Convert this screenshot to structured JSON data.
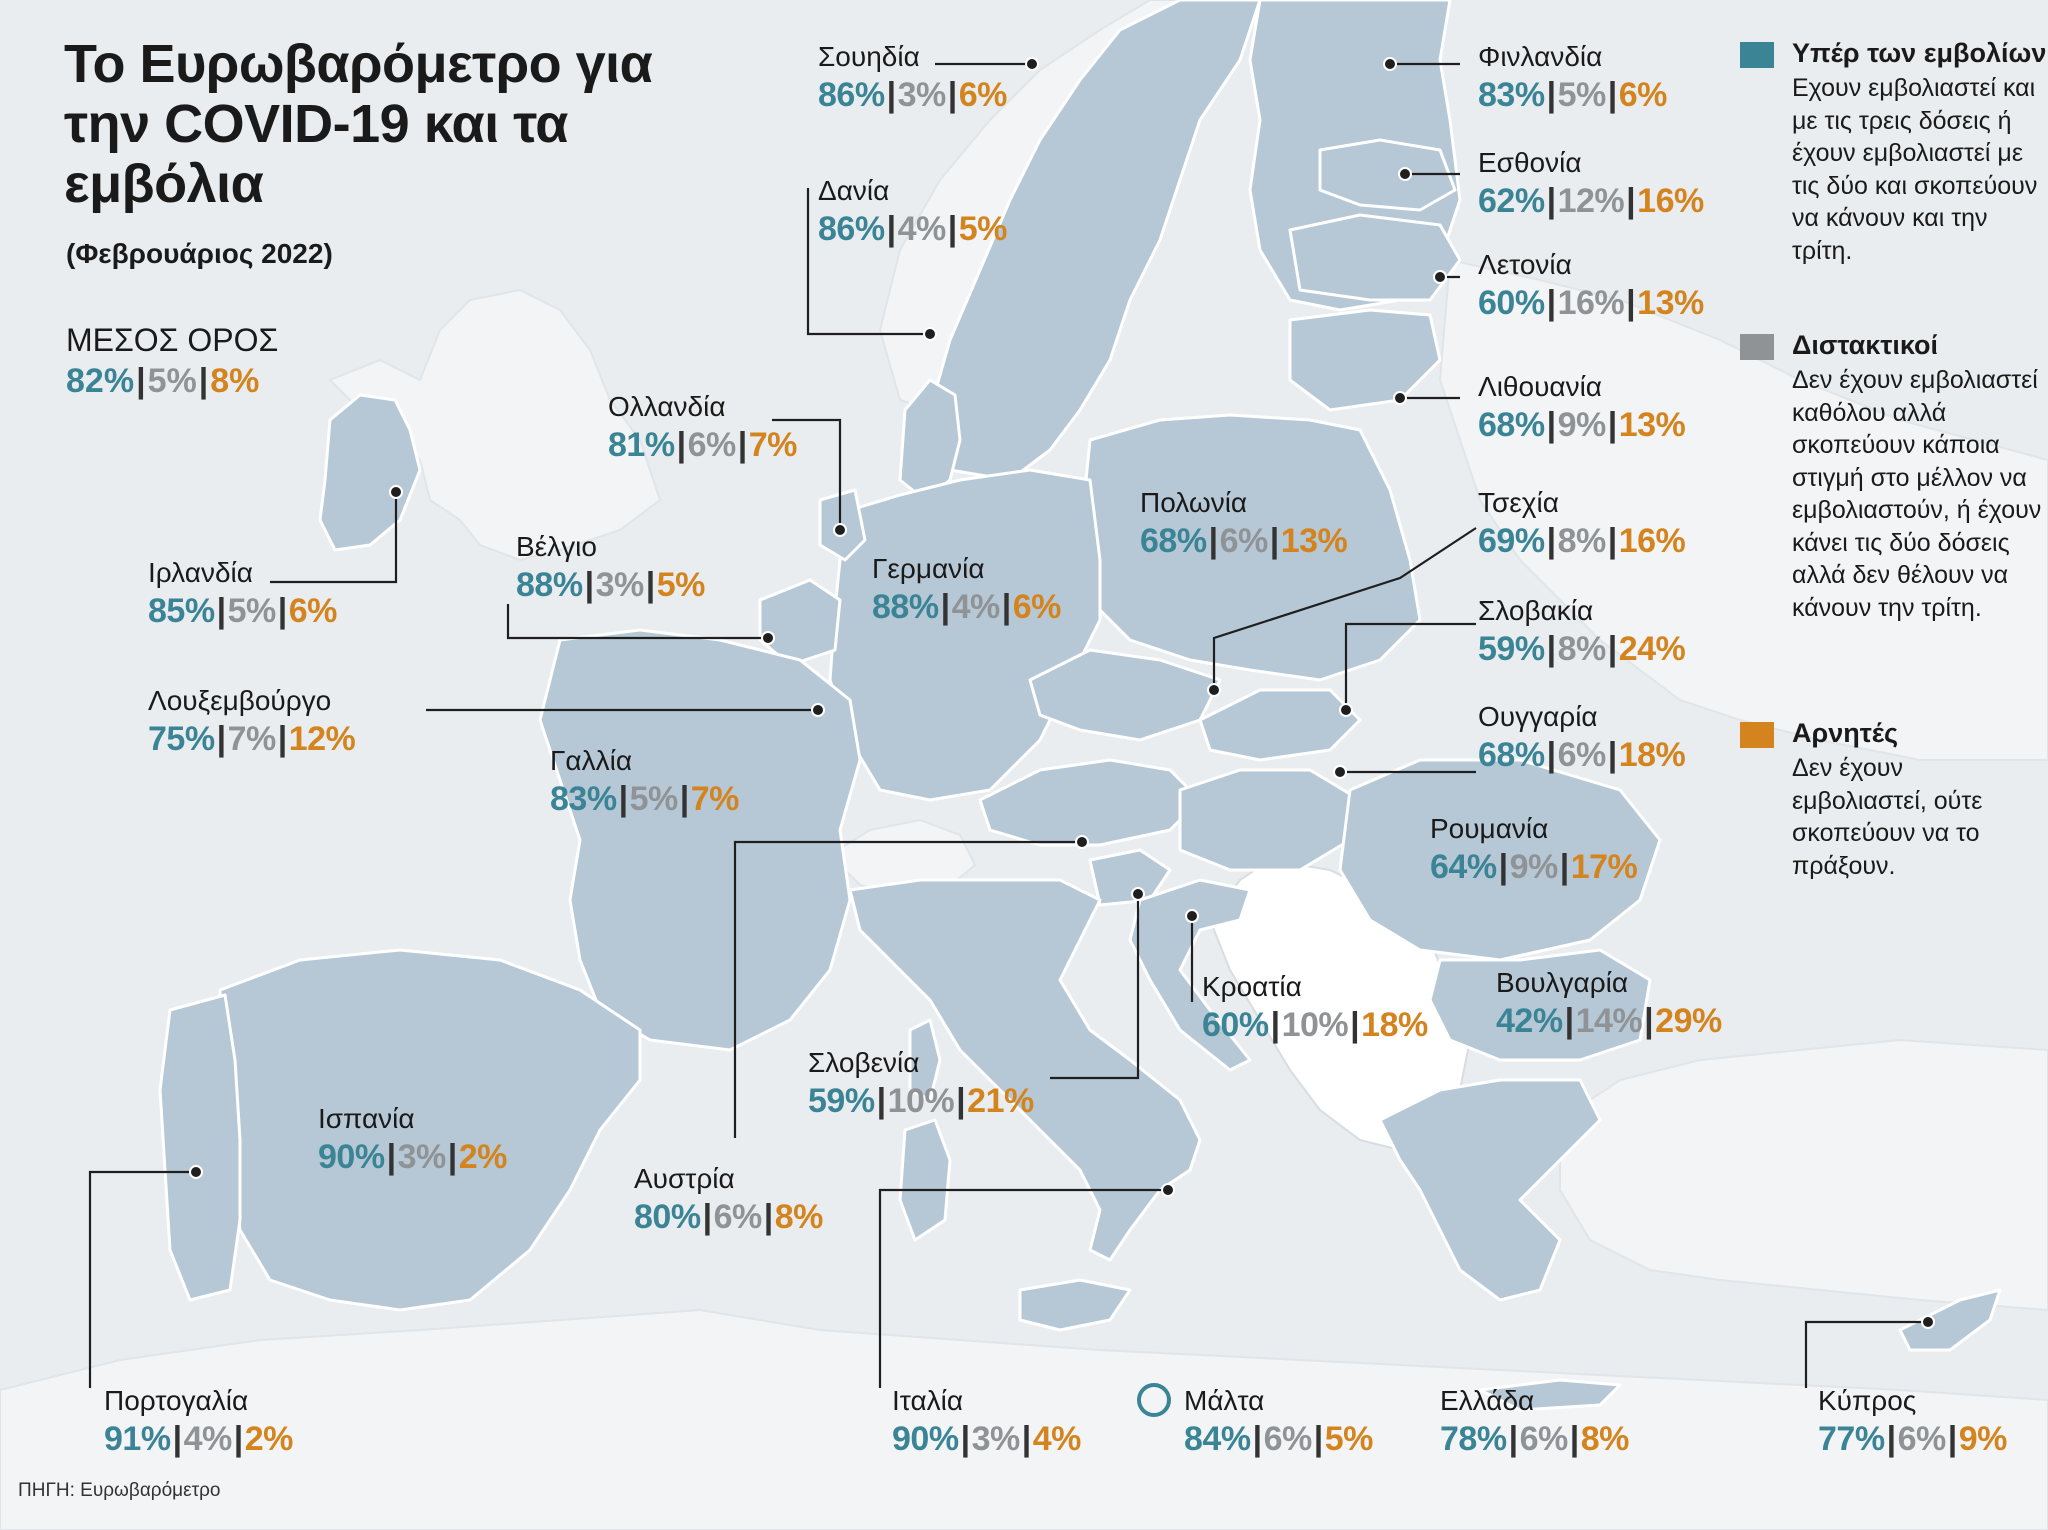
{
  "title": "Το Ευρωβαρόμετρο για την COVID-19 και τα εμβόλια",
  "subtitle": "(Φεβρουάριος 2022)",
  "source": "ΠΗΓΗ: Ευρωβαρόμετρο",
  "colors": {
    "pro": "#3b8496",
    "hesitant": "#8f9396",
    "against": "#d4841f",
    "land": "#b6c8d5"
  },
  "average": {
    "label": "ΜΕΣΟΣ ΟΡΟΣ",
    "pro": "82%",
    "hesitant": "5%",
    "against": "8%"
  },
  "legend": [
    {
      "title": "Υπέρ των εμβολίων",
      "description": "Εχουν εμβολιαστεί και με τις τρεις δόσεις ή έχουν εμβολιαστεί με τις δύο και σκοπεύουν να κάνουν και την τρίτη.",
      "color": "#3b8496"
    },
    {
      "title": "Διστακτικοί",
      "description": "Δεν έχουν εμβολιαστεί καθόλου αλλά σκοπεύουν κάποια στιγμή στο μέλλον να εμβολιαστούν, ή έχουν κάνει τις δύο δόσεις αλλά δεν θέλουν να κάνουν την τρίτη.",
      "color": "#8f9396"
    },
    {
      "title": "Αρνητές",
      "description": "Δεν έχουν εμβολιαστεί, ούτε σκοπεύουν να το πράξουν.",
      "color": "#d4841f"
    }
  ],
  "countries": [
    {
      "name": "Σουηδία",
      "pro": "86%",
      "hesitant": "3%",
      "against": "6%"
    },
    {
      "name": "Δανία",
      "pro": "86%",
      "hesitant": "4%",
      "against": "5%"
    },
    {
      "name": "Φινλανδία",
      "pro": "83%",
      "hesitant": "5%",
      "against": "6%"
    },
    {
      "name": "Εσθονία",
      "pro": "62%",
      "hesitant": "12%",
      "against": "16%"
    },
    {
      "name": "Λετονία",
      "pro": "60%",
      "hesitant": "16%",
      "against": "13%"
    },
    {
      "name": "Λιθουανία",
      "pro": "68%",
      "hesitant": "9%",
      "against": "13%"
    },
    {
      "name": "Ολλανδία",
      "pro": "81%",
      "hesitant": "6%",
      "against": "7%"
    },
    {
      "name": "Ιρλανδία",
      "pro": "85%",
      "hesitant": "5%",
      "against": "6%"
    },
    {
      "name": "Βέλγιο",
      "pro": "88%",
      "hesitant": "3%",
      "against": "5%"
    },
    {
      "name": "Γερμανία",
      "pro": "88%",
      "hesitant": "4%",
      "against": "6%"
    },
    {
      "name": "Πολωνία",
      "pro": "68%",
      "hesitant": "6%",
      "against": "13%"
    },
    {
      "name": "Τσεχία",
      "pro": "69%",
      "hesitant": "8%",
      "against": "16%"
    },
    {
      "name": "Σλοβακία",
      "pro": "59%",
      "hesitant": "8%",
      "against": "24%"
    },
    {
      "name": "Λουξεμβούργο",
      "pro": "75%",
      "hesitant": "7%",
      "against": "12%"
    },
    {
      "name": "Γαλλία",
      "pro": "83%",
      "hesitant": "5%",
      "against": "7%"
    },
    {
      "name": "Ουγγαρία",
      "pro": "68%",
      "hesitant": "6%",
      "against": "18%"
    },
    {
      "name": "Ρουμανία",
      "pro": "64%",
      "hesitant": "9%",
      "against": "17%"
    },
    {
      "name": "Κροατία",
      "pro": "60%",
      "hesitant": "10%",
      "against": "18%"
    },
    {
      "name": "Βουλγαρία",
      "pro": "42%",
      "hesitant": "14%",
      "against": "29%"
    },
    {
      "name": "Σλοβενία",
      "pro": "59%",
      "hesitant": "10%",
      "against": "21%"
    },
    {
      "name": "Ισπανία",
      "pro": "90%",
      "hesitant": "3%",
      "against": "2%"
    },
    {
      "name": "Αυστρία",
      "pro": "80%",
      "hesitant": "6%",
      "against": "8%"
    },
    {
      "name": "Πορτογαλία",
      "pro": "91%",
      "hesitant": "4%",
      "against": "2%"
    },
    {
      "name": "Ιταλία",
      "pro": "90%",
      "hesitant": "3%",
      "against": "4%"
    },
    {
      "name": "Μάλτα",
      "pro": "84%",
      "hesitant": "6%",
      "against": "5%"
    },
    {
      "name": "Ελλάδα",
      "pro": "78%",
      "hesitant": "6%",
      "against": "8%"
    },
    {
      "name": "Κύπρος",
      "pro": "77%",
      "hesitant": "6%",
      "against": "9%"
    }
  ]
}
